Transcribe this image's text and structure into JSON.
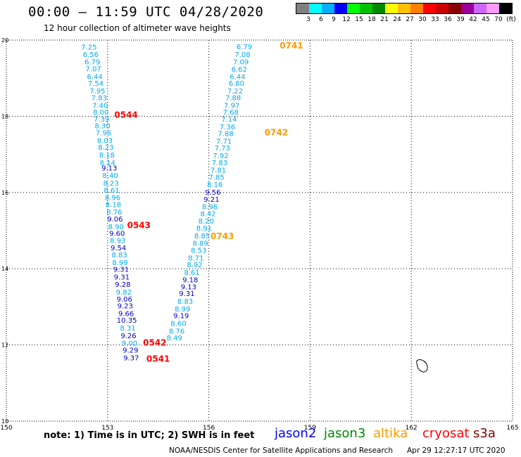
{
  "header": {
    "title": "00:00 – 11:59 UTC 04/28/2020",
    "subtitle": "12 hour collection of altimeter wave heights"
  },
  "color_scale": {
    "colors": [
      "#808080",
      "#00ffff",
      "#00b0ff",
      "#0000ff",
      "#00ff00",
      "#00c000",
      "#008800",
      "#ffff00",
      "#ffc000",
      "#ff8000",
      "#ff0000",
      "#cc0000",
      "#880000",
      "#990099",
      "#cc66ff",
      "#ff99ff",
      "#000000"
    ],
    "labels": [
      "3",
      "6",
      "9",
      "12",
      "15",
      "18",
      "21",
      "24",
      "27",
      "30",
      "33",
      "36",
      "39",
      "42",
      "45",
      "70",
      "(ft)"
    ]
  },
  "note": "note: 1) Time is in UTC; 2) SWH is in feet",
  "legend": [
    {
      "name": "jason2",
      "color": "#0000ff"
    },
    {
      "name": "jason3",
      "color": "#008800"
    },
    {
      "name": "altika",
      "color": "#ff9900"
    },
    {
      "name": "cryosat",
      "color": "#ff0000"
    },
    {
      "name": "s3a",
      "color": "#880000"
    }
  ],
  "credit": "NOAA/NESDIS Center for Satellite Applications and Research",
  "timestamp": "Apr 29 12:27:17 UTC 2020",
  "chart_data": {
    "type": "scatter",
    "xlim": [
      150,
      165
    ],
    "ylim": [
      10,
      20
    ],
    "xticks": [
      150,
      153,
      156,
      159,
      162,
      165
    ],
    "yticks": [
      10,
      12,
      14,
      16,
      18,
      20
    ],
    "grid": true,
    "tracks": [
      {
        "color": "#00aaee",
        "points": [
          [
            152.45,
            19.75,
            "7.25"
          ],
          [
            152.5,
            19.56,
            "6.56"
          ],
          [
            152.55,
            19.36,
            "6.79"
          ],
          [
            152.58,
            19.18,
            "7.07"
          ],
          [
            152.62,
            18.98,
            "6.44"
          ],
          [
            152.65,
            18.8,
            "7.54"
          ],
          [
            152.7,
            18.6,
            "7.95"
          ],
          [
            152.75,
            18.42,
            "7.83"
          ],
          [
            152.78,
            18.22,
            "7.40"
          ],
          [
            152.8,
            18.04,
            "8.00"
          ],
          [
            152.82,
            17.86,
            "7.39"
          ],
          [
            152.85,
            17.68,
            "8.30"
          ],
          [
            152.88,
            17.5,
            "7.96"
          ],
          [
            152.92,
            17.3,
            "8.03"
          ],
          [
            152.95,
            17.12,
            "8.23"
          ],
          [
            152.98,
            16.92,
            "8.18"
          ],
          [
            153.0,
            16.72,
            "8.14"
          ]
        ]
      },
      {
        "color": "#0000cc",
        "points": [
          [
            153.05,
            16.58,
            "9.13"
          ]
        ]
      },
      {
        "color": "#00aaee",
        "points": [
          [
            153.08,
            16.38,
            "8.40"
          ],
          [
            153.1,
            16.18,
            "8.23"
          ],
          [
            153.12,
            16.0,
            "8.61"
          ],
          [
            153.15,
            15.8,
            "8.96"
          ],
          [
            153.17,
            15.62,
            "8.18"
          ],
          [
            153.2,
            15.42,
            "8.76"
          ]
        ]
      },
      {
        "color": "#0000cc",
        "points": [
          [
            153.22,
            15.24,
            "9.06"
          ]
        ]
      },
      {
        "color": "#00aaee",
        "points": [
          [
            153.25,
            15.04,
            "8.90"
          ]
        ]
      },
      {
        "color": "#0000cc",
        "points": [
          [
            153.28,
            14.86,
            "9.60"
          ]
        ]
      },
      {
        "color": "#00aaee",
        "points": [
          [
            153.3,
            14.68,
            "8.93"
          ]
        ]
      },
      {
        "color": "#0000cc",
        "points": [
          [
            153.32,
            14.48,
            "9.54"
          ]
        ]
      },
      {
        "color": "#00aaee",
        "points": [
          [
            153.35,
            14.3,
            "8.83"
          ],
          [
            153.37,
            14.1,
            "8.99"
          ]
        ]
      },
      {
        "color": "#0000cc",
        "points": [
          [
            153.4,
            13.92,
            "9.31"
          ],
          [
            153.42,
            13.72,
            "9.31"
          ],
          [
            153.45,
            13.52,
            "9.28"
          ]
        ]
      },
      {
        "color": "#00aaee",
        "points": [
          [
            153.48,
            13.32,
            "9.82"
          ]
        ]
      },
      {
        "color": "#0000cc",
        "points": [
          [
            153.5,
            13.14,
            "9.06"
          ],
          [
            153.52,
            12.96,
            "9.23"
          ],
          [
            153.55,
            12.76,
            "9.66"
          ],
          [
            153.57,
            12.58,
            "10.35"
          ]
        ]
      },
      {
        "color": "#00aaee",
        "points": [
          [
            153.6,
            12.38,
            "8.31"
          ]
        ]
      },
      {
        "color": "#0000cc",
        "points": [
          [
            153.62,
            12.18,
            "9.26"
          ]
        ]
      },
      {
        "color": "#00aaee",
        "points": [
          [
            153.65,
            11.98,
            "9.00"
          ]
        ]
      },
      {
        "color": "#0000cc",
        "points": [
          [
            153.68,
            11.8,
            "9.29"
          ],
          [
            153.7,
            11.6,
            "9.37"
          ]
        ]
      },
      {
        "color": "#00aaee",
        "points": [
          [
            157.05,
            19.76,
            "6.79"
          ],
          [
            157.0,
            19.56,
            "7.08"
          ],
          [
            156.95,
            19.36,
            "7.09"
          ],
          [
            156.9,
            19.17,
            "6.62"
          ],
          [
            156.85,
            18.98,
            "6.44"
          ],
          [
            156.82,
            18.8,
            "6.80"
          ],
          [
            156.78,
            18.6,
            "7.22"
          ],
          [
            156.72,
            18.42,
            "7.88"
          ],
          [
            156.68,
            18.22,
            "7.97"
          ],
          [
            156.65,
            18.04,
            "7.68"
          ],
          [
            156.6,
            17.86,
            "7.14"
          ],
          [
            156.55,
            17.66,
            "7.36"
          ],
          [
            156.5,
            17.48,
            "7.88"
          ],
          [
            156.45,
            17.28,
            "7.71"
          ],
          [
            156.4,
            17.1,
            "7.73"
          ],
          [
            156.35,
            16.9,
            "7.92"
          ],
          [
            156.32,
            16.72,
            "7.83"
          ],
          [
            156.28,
            16.52,
            "7.81"
          ],
          [
            156.23,
            16.34,
            "7.85"
          ],
          [
            156.18,
            16.14,
            "8.16"
          ]
        ]
      },
      {
        "color": "#0000cc",
        "points": [
          [
            156.12,
            15.94,
            "9.56"
          ],
          [
            156.08,
            15.76,
            "9.21"
          ]
        ]
      },
      {
        "color": "#00aaee",
        "points": [
          [
            156.03,
            15.56,
            "8.96"
          ],
          [
            155.98,
            15.38,
            "8.42"
          ],
          [
            155.92,
            15.18,
            "8.20"
          ],
          [
            155.86,
            15.0,
            "8.91"
          ],
          [
            155.8,
            14.8,
            "8.85"
          ],
          [
            155.75,
            14.6,
            "8.89"
          ],
          [
            155.7,
            14.42,
            "8.53"
          ],
          [
            155.62,
            14.22,
            "8.71"
          ],
          [
            155.58,
            14.04,
            "8.92"
          ],
          [
            155.5,
            13.84,
            "8.61"
          ]
        ]
      },
      {
        "color": "#0000cc",
        "points": [
          [
            155.45,
            13.64,
            "9.18"
          ],
          [
            155.4,
            13.46,
            "9.13"
          ],
          [
            155.35,
            13.28,
            "9.31"
          ]
        ]
      },
      {
        "color": "#00aaee",
        "points": [
          [
            155.3,
            13.08,
            "8.83"
          ],
          [
            155.22,
            12.88,
            "8.99"
          ]
        ]
      },
      {
        "color": "#0000cc",
        "points": [
          [
            155.18,
            12.7,
            "9.19"
          ]
        ]
      },
      {
        "color": "#00aaee",
        "points": [
          [
            155.1,
            12.5,
            "8.60"
          ],
          [
            155.05,
            12.3,
            "8.76"
          ],
          [
            154.98,
            12.12,
            "8.49"
          ]
        ]
      }
    ],
    "passes": [
      {
        "label": "0741",
        "color": "#ff9900",
        "x": 158.1,
        "y": 19.78
      },
      {
        "label": "0544",
        "color": "#ff0000",
        "x": 153.2,
        "y": 17.96
      },
      {
        "label": "0742",
        "color": "#ff9900",
        "x": 157.65,
        "y": 17.5
      },
      {
        "label": "0543",
        "color": "#ff0000",
        "x": 153.58,
        "y": 15.06
      },
      {
        "label": "0743",
        "color": "#ff9900",
        "x": 156.05,
        "y": 14.78
      },
      {
        "label": "0542",
        "color": "#ff0000",
        "x": 154.05,
        "y": 11.98
      },
      {
        "label": "0541",
        "color": "#ff0000",
        "x": 154.15,
        "y": 11.56
      }
    ]
  }
}
